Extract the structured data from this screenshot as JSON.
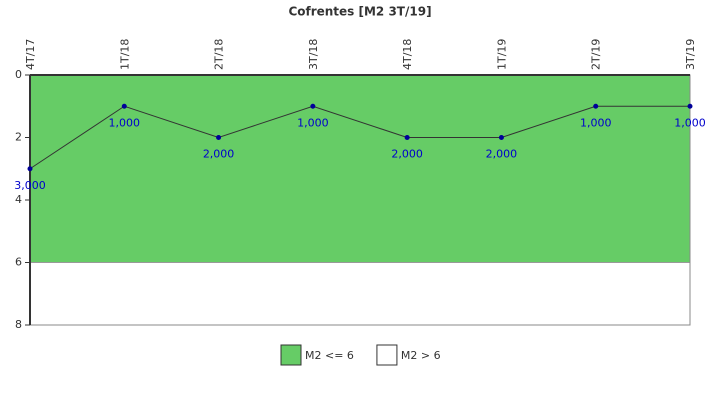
{
  "chart_data": {
    "type": "line",
    "title": "Cofrentes [M2 3T/19]",
    "categories": [
      "4T/17",
      "1T/18",
      "2T/18",
      "3T/18",
      "4T/18",
      "1T/19",
      "2T/19",
      "3T/19"
    ],
    "series": [
      {
        "name": "M2",
        "color": "#333333",
        "marker_color": "#000099",
        "values": [
          3,
          1,
          2,
          1,
          2,
          2,
          1,
          1
        ],
        "value_labels": [
          "3,000",
          "1,000",
          "2,000",
          "1,000",
          "2,000",
          "2,000",
          "1,000",
          "1,000"
        ]
      }
    ],
    "bands": [
      {
        "name": "M2 <= 6",
        "color": "#66cc66",
        "from": 0,
        "to": 6
      },
      {
        "name": "M2 > 6",
        "color": "#ffffff",
        "from": 6,
        "to": 8
      }
    ],
    "ylim": [
      0,
      8
    ],
    "yticks": [
      0,
      2,
      4,
      6,
      8
    ],
    "y_inverted": true
  }
}
